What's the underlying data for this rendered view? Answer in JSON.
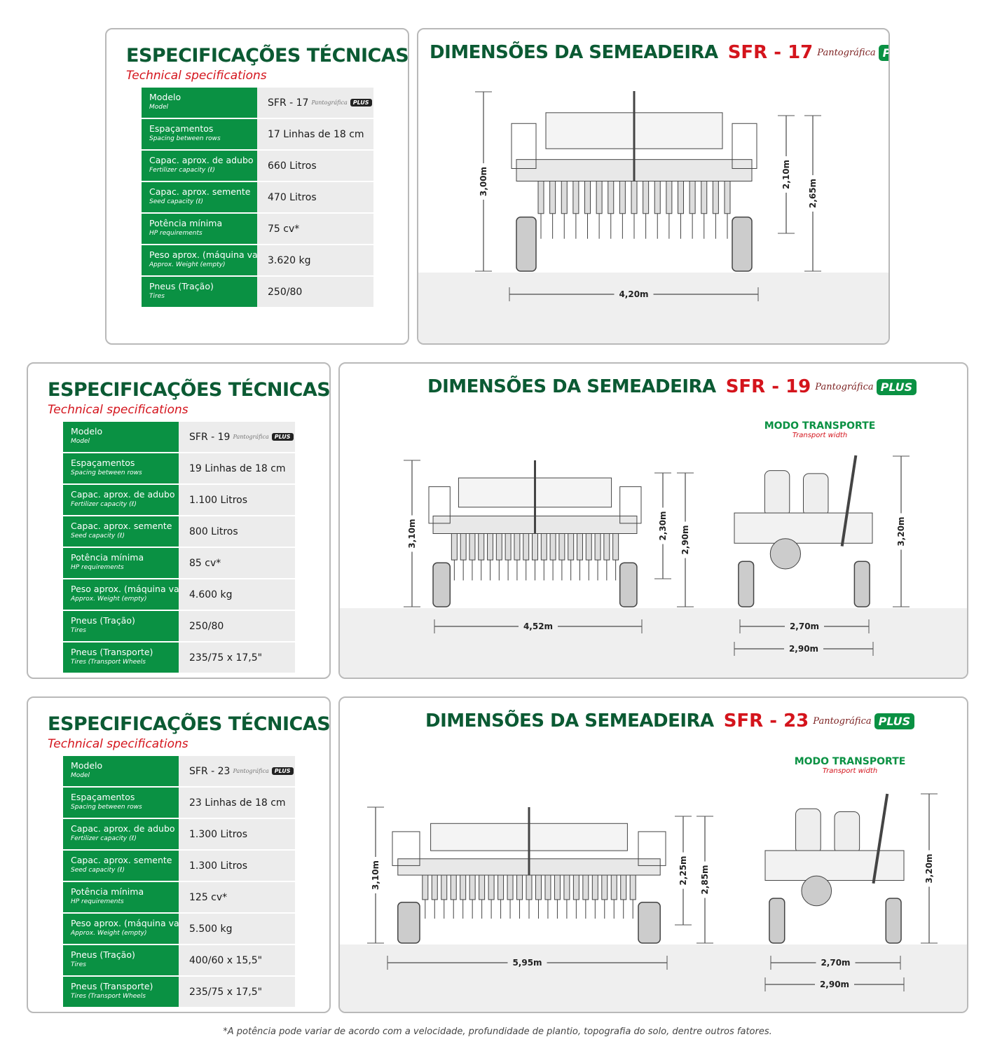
{
  "spec_title": "ESPECIFICAÇÕES TÉCNICAS",
  "spec_subtitle": "Technical specifications",
  "dim_title": "DIMENSÕES DA SEMEADEIRA",
  "pantografica": "Pantográfica",
  "plus": "PLUS",
  "transport_title": "MODO TRANSPORTE",
  "transport_sub": "Transport width",
  "labels": [
    {
      "pt": "Modelo",
      "en": "Model"
    },
    {
      "pt": "Espaçamentos",
      "en": "Spacing between rows"
    },
    {
      "pt": "Capac. aprox. de adubo",
      "en": "Fertilizer capacity (ℓ)"
    },
    {
      "pt": "Capac. aprox. semente",
      "en": "Seed capacity (ℓ)"
    },
    {
      "pt": "Potência mínima",
      "en": "HP requirements"
    },
    {
      "pt": "Peso aprox. (máquina vazia)",
      "en": "Approx. Weight (empty)"
    },
    {
      "pt": "Pneus (Tração)",
      "en": "Tires"
    },
    {
      "pt": "Pneus (Transporte)",
      "en": "Tires (Transport Wheels"
    }
  ],
  "models": [
    {
      "model": "SFR - 17",
      "values": [
        "17 Linhas de 18 cm",
        "660 Litros",
        "470 Litros",
        "75 cv*",
        "3.620 kg",
        "250/80"
      ],
      "dims": {
        "height": "3,00m",
        "inner": "2,10m",
        "outer": "2,65m",
        "width": "4,20m"
      }
    },
    {
      "model": "SFR - 19",
      "values": [
        "19 Linhas de 18 cm",
        "1.100 Litros",
        "800 Litros",
        "85 cv*",
        "4.600 kg",
        "250/80",
        "235/75 x 17,5\""
      ],
      "dims": {
        "height": "3,10m",
        "inner": "2,30m",
        "outer": "2,90m",
        "width": "4,52m",
        "t_height": "3,20m",
        "t_inner": "2,70m",
        "t_outer": "2,90m"
      }
    },
    {
      "model": "SFR - 23",
      "values": [
        "23 Linhas de 18 cm",
        "1.300 Litros",
        "1.300 Litros",
        "125 cv*",
        "5.500 kg",
        "400/60 x 15,5\"",
        "235/75 x 17,5\""
      ],
      "dims": {
        "height": "3,10m",
        "inner": "2,25m",
        "outer": "2,85m",
        "width": "5,95m",
        "t_height": "3,20m",
        "t_inner": "2,70m",
        "t_outer": "2,90m"
      }
    }
  ],
  "footnote": "*A potência pode variar de acordo com a velocidade, profundidade de plantio, topografia do solo, dentre outros fatores.",
  "colors": {
    "green": "#0a9143",
    "dark_green": "#0b5a33",
    "red": "#d4141c"
  }
}
